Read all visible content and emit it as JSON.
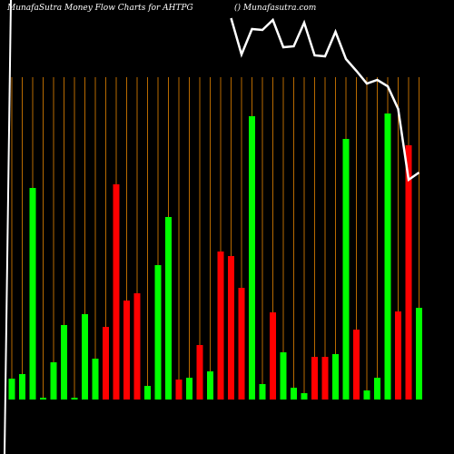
{
  "chart_data": {
    "type": "bar",
    "title": "MunafaSutra  Money Flow  Charts for AHTPG",
    "subtitle": "() Munafasutra.com",
    "categories": [
      null,
      null,
      null,
      null,
      null,
      null,
      null,
      null,
      null,
      null,
      null,
      null,
      null,
      null,
      null,
      null,
      null,
      null,
      null,
      null,
      null,
      null,
      null,
      null,
      null,
      null,
      null,
      null,
      null,
      null,
      null,
      null,
      null,
      null,
      null,
      null,
      null,
      null,
      null,
      null
    ],
    "values": [
      23,
      28,
      233,
      2,
      41,
      82,
      2,
      94,
      45,
      80,
      237,
      109,
      117,
      15,
      148,
      201,
      22,
      24,
      60,
      31,
      163,
      158,
      123,
      312,
      17,
      96,
      52,
      13,
      7,
      47,
      47,
      50,
      287,
      77,
      10,
      24,
      315,
      97,
      280,
      101
    ],
    "colors": [
      "#00ff00",
      "#00ff00",
      "#00ff00",
      "#00ff00",
      "#00ff00",
      "#00ff00",
      "#00ff00",
      "#00ff00",
      "#00ff00",
      "#ff0000",
      "#ff0000",
      "#ff0000",
      "#ff0000",
      "#00ff00",
      "#00ff00",
      "#00ff00",
      "#ff0000",
      "#00ff00",
      "#ff0000",
      "#00ff00",
      "#ff0000",
      "#ff0000",
      "#ff0000",
      "#00ff00",
      "#00ff00",
      "#ff0000",
      "#00ff00",
      "#00ff00",
      "#00ff00",
      "#ff0000",
      "#ff0000",
      "#00ff00",
      "#00ff00",
      "#ff0000",
      "#00ff00",
      "#00ff00",
      "#00ff00",
      "#ff0000",
      "#ff0000",
      "#00ff00"
    ],
    "ylim": [
      0,
      360
    ],
    "line": {
      "color": "#ffffff",
      "ylim": [
        0,
        500
      ],
      "values": [
        null,
        null,
        null,
        null,
        null,
        null,
        null,
        null,
        null,
        null,
        null,
        null,
        null,
        null,
        null,
        null,
        null,
        null,
        null,
        null,
        null,
        480,
        440,
        468,
        467,
        478,
        448,
        449,
        475,
        439,
        438,
        465,
        435,
        422,
        408,
        412,
        405,
        380,
        302,
        310
      ]
    }
  }
}
